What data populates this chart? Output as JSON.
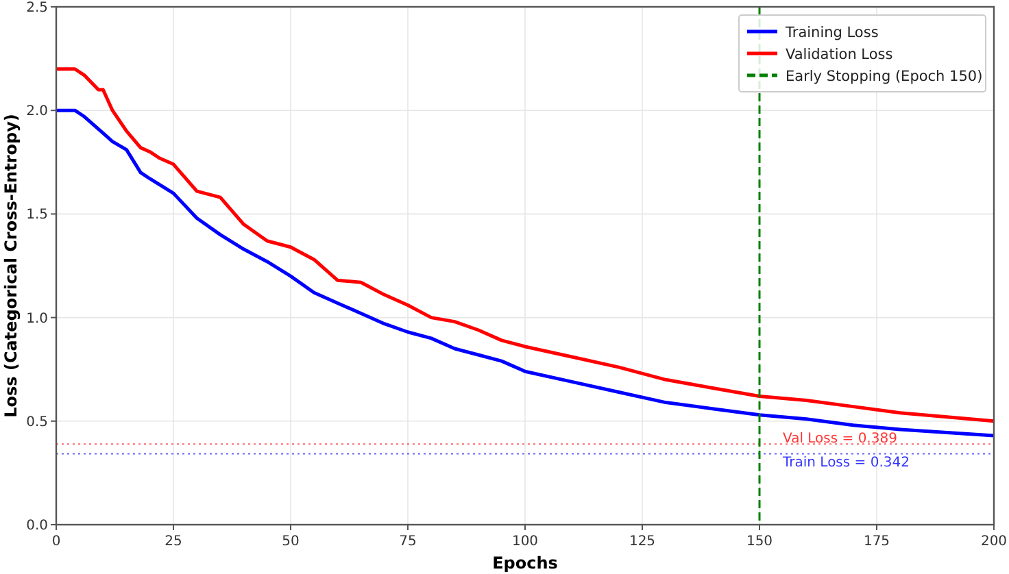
{
  "chart_data": {
    "type": "line",
    "xlabel": "Epochs",
    "ylabel": "Loss (Categorical Cross-Entropy)",
    "xlim": [
      0,
      200
    ],
    "xticks": [
      0,
      25,
      50,
      75,
      100,
      125,
      150,
      175,
      200
    ],
    "ylim": [
      0,
      2.5
    ],
    "yticks": [
      {
        "value": 0,
        "label": "0.0"
      },
      {
        "value": 0.5,
        "label": "0.5"
      },
      {
        "value": 1,
        "label": "1.0"
      },
      {
        "value": 1.5,
        "label": "1.5"
      },
      {
        "value": 2,
        "label": "2.0"
      },
      {
        "value": 2.5,
        "label": "2.5"
      }
    ],
    "grid": true,
    "legend": "top right",
    "marker": "none",
    "line_style": "solid",
    "series": [
      {
        "name": "Training Loss",
        "color": "#0000ff",
        "x": [
          0,
          4,
          6,
          10,
          12,
          15,
          18,
          20,
          25,
          30,
          35,
          40,
          45,
          50,
          55,
          60,
          65,
          70,
          75,
          80,
          85,
          90,
          95,
          100,
          110,
          120,
          130,
          140,
          150,
          160,
          170,
          180,
          190,
          200
        ],
        "values": [
          2.0,
          2.0,
          1.97,
          1.89,
          1.85,
          1.81,
          1.7,
          1.67,
          1.6,
          1.48,
          1.4,
          1.33,
          1.27,
          1.2,
          1.12,
          1.07,
          1.02,
          0.97,
          0.93,
          0.9,
          0.85,
          0.82,
          0.79,
          0.74,
          0.69,
          0.64,
          0.59,
          0.56,
          0.53,
          0.51,
          0.48,
          0.46,
          0.445,
          0.43
        ]
      },
      {
        "name": "Validation Loss",
        "color": "#ff0000",
        "x": [
          0,
          4,
          6,
          9,
          10,
          12,
          15,
          18,
          20,
          22,
          25,
          30,
          35,
          40,
          45,
          50,
          55,
          60,
          65,
          70,
          75,
          80,
          85,
          90,
          95,
          100,
          110,
          120,
          130,
          140,
          150,
          160,
          170,
          180,
          190,
          200
        ],
        "values": [
          2.2,
          2.2,
          2.17,
          2.1,
          2.1,
          2.0,
          1.9,
          1.82,
          1.8,
          1.77,
          1.74,
          1.61,
          1.58,
          1.45,
          1.37,
          1.34,
          1.28,
          1.18,
          1.17,
          1.11,
          1.06,
          1.0,
          0.98,
          0.94,
          0.89,
          0.86,
          0.81,
          0.76,
          0.7,
          0.66,
          0.62,
          0.6,
          0.57,
          0.54,
          0.52,
          0.5
        ]
      }
    ],
    "ref_lines": [
      {
        "axis": "x",
        "value": 150,
        "label": "Early Stopping (Epoch 150)",
        "color": "#008000",
        "line_style": "dashed"
      },
      {
        "axis": "y",
        "value": 0.389,
        "label": "Val Loss = 0.389",
        "color": "#ff0000",
        "line_style": "dotted"
      },
      {
        "axis": "y",
        "value": 0.342,
        "label": "Train Loss = 0.342",
        "color": "#0000ff",
        "line_style": "dotted"
      }
    ]
  }
}
